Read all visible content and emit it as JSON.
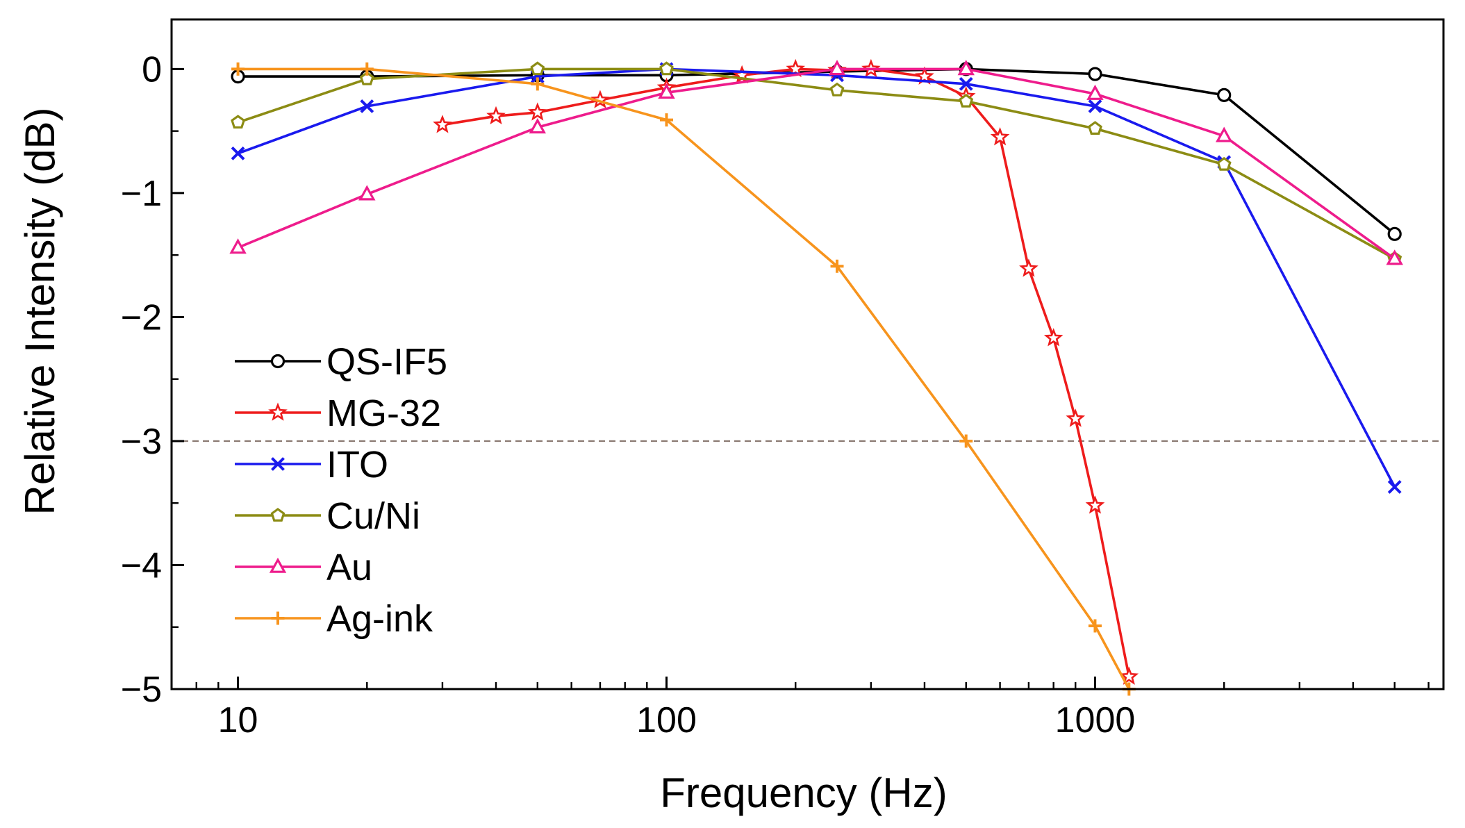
{
  "chart_data": {
    "type": "line",
    "xlabel": "Frequency (Hz)",
    "ylabel": "Relative Intensity (dB)",
    "x_scale": "log",
    "xlim": [
      7,
      6500
    ],
    "ylim": [
      -5,
      0.4
    ],
    "x_ticks": [
      10,
      100,
      1000
    ],
    "x_tick_labels": [
      "10",
      "100",
      "1000"
    ],
    "y_ticks": [
      0,
      -1,
      -2,
      -3,
      -4,
      -5
    ],
    "y_tick_labels": [
      "0",
      "−1",
      "−2",
      "−3",
      "−4",
      "−5"
    ],
    "grid": false,
    "legend_position": "bottom-left",
    "reference_line": {
      "y": -3,
      "style": "dashed",
      "color": "#8a7a72"
    },
    "series": [
      {
        "name": "QS-IF5",
        "color": "#000000",
        "marker": "circle",
        "x": [
          10,
          20,
          50,
          100,
          250,
          500,
          1000,
          2000,
          5000
        ],
        "y": [
          -0.06,
          -0.06,
          -0.05,
          -0.05,
          -0.02,
          0.0,
          -0.04,
          -0.21,
          -1.33
        ]
      },
      {
        "name": "MG-32",
        "color": "#ee1c1c",
        "marker": "star",
        "x": [
          30,
          40,
          50,
          70,
          100,
          150,
          200,
          250,
          300,
          400,
          500,
          600,
          700,
          800,
          900,
          1000,
          1200
        ],
        "y": [
          -0.45,
          -0.38,
          -0.35,
          -0.25,
          -0.15,
          -0.05,
          0.0,
          -0.01,
          0.0,
          -0.06,
          -0.22,
          -0.55,
          -1.61,
          -2.17,
          -2.82,
          -3.52,
          -4.9
        ]
      },
      {
        "name": "ITO",
        "color": "#1a1aee",
        "marker": "x",
        "x": [
          10,
          20,
          50,
          100,
          250,
          500,
          1000,
          2000,
          5000
        ],
        "y": [
          -0.68,
          -0.3,
          -0.06,
          -0.0,
          -0.05,
          -0.12,
          -0.3,
          -0.75,
          -3.37
        ]
      },
      {
        "name": "Cu/Ni",
        "color": "#8c8c14",
        "marker": "pentagon",
        "x": [
          10,
          20,
          50,
          100,
          250,
          500,
          1000,
          2000,
          5000
        ],
        "y": [
          -0.43,
          -0.08,
          0.0,
          0.0,
          -0.17,
          -0.26,
          -0.48,
          -0.77,
          -1.53
        ]
      },
      {
        "name": "Au",
        "color": "#ee1c8c",
        "marker": "triangle",
        "x": [
          10,
          20,
          50,
          100,
          250,
          500,
          1000,
          2000,
          5000
        ],
        "y": [
          -1.44,
          -1.01,
          -0.47,
          -0.19,
          0.0,
          0.0,
          -0.2,
          -0.54,
          -1.53
        ]
      },
      {
        "name": "Ag-ink",
        "color": "#f7941d",
        "marker": "plus",
        "x": [
          10,
          20,
          50,
          100,
          250,
          500,
          1000,
          1200
        ],
        "y": [
          0.0,
          0.0,
          -0.12,
          -0.41,
          -1.59,
          -3.0,
          -4.49,
          -5.0
        ]
      }
    ]
  }
}
